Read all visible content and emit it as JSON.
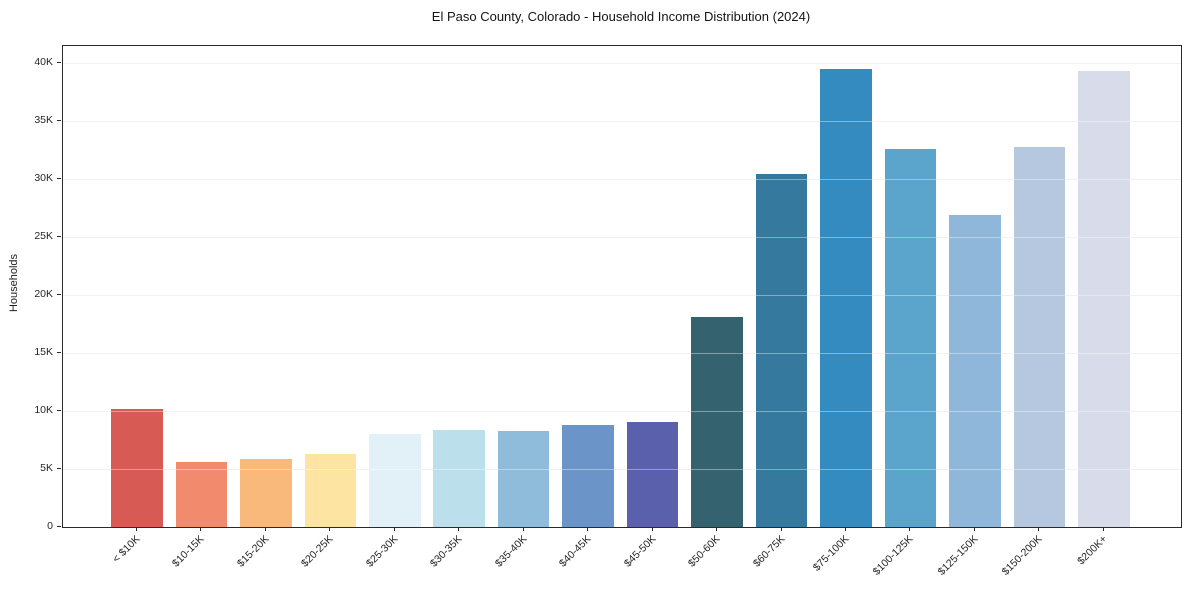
{
  "title": "El Paso County, Colorado - Household Income Distribution (2024)",
  "chart_data": {
    "type": "bar",
    "title": "El Paso County, Colorado - Household Income Distribution (2024)",
    "xlabel": "",
    "ylabel": "Households",
    "ylim": [
      0,
      41500
    ],
    "grid": "horizontal",
    "legend": "none",
    "yticks": [
      {
        "value": 0,
        "label": "0"
      },
      {
        "value": 5000,
        "label": "5K"
      },
      {
        "value": 10000,
        "label": "10K"
      },
      {
        "value": 15000,
        "label": "15K"
      },
      {
        "value": 20000,
        "label": "20K"
      },
      {
        "value": 25000,
        "label": "25K"
      },
      {
        "value": 30000,
        "label": "30K"
      },
      {
        "value": 35000,
        "label": "35K"
      },
      {
        "value": 40000,
        "label": "40K"
      }
    ],
    "categories": [
      "< $10K",
      "$10-15K",
      "$15-20K",
      "$20-25K",
      "$25-30K",
      "$30-35K",
      "$35-40K",
      "$40-45K",
      "$45-50K",
      "$50-60K",
      "$60-75K",
      "$75-100K",
      "$100-125K",
      "$125-150K",
      "$150-200K",
      "$200K+"
    ],
    "values": [
      10150,
      5650,
      5900,
      6300,
      8000,
      8400,
      8250,
      8800,
      9100,
      18150,
      30500,
      39500,
      32600,
      26900,
      32750,
      39350
    ],
    "bar_colors": [
      "#d75a55",
      "#f28b6d",
      "#f9b97a",
      "#fde4a2",
      "#e2f1f7",
      "#bbdfeb",
      "#90bcdb",
      "#6b94c8",
      "#5b60ad",
      "#35626f",
      "#36799f",
      "#338bbf",
      "#5ba4cb",
      "#8eb7da",
      "#b6c8e0",
      "#d8dbe9"
    ]
  }
}
